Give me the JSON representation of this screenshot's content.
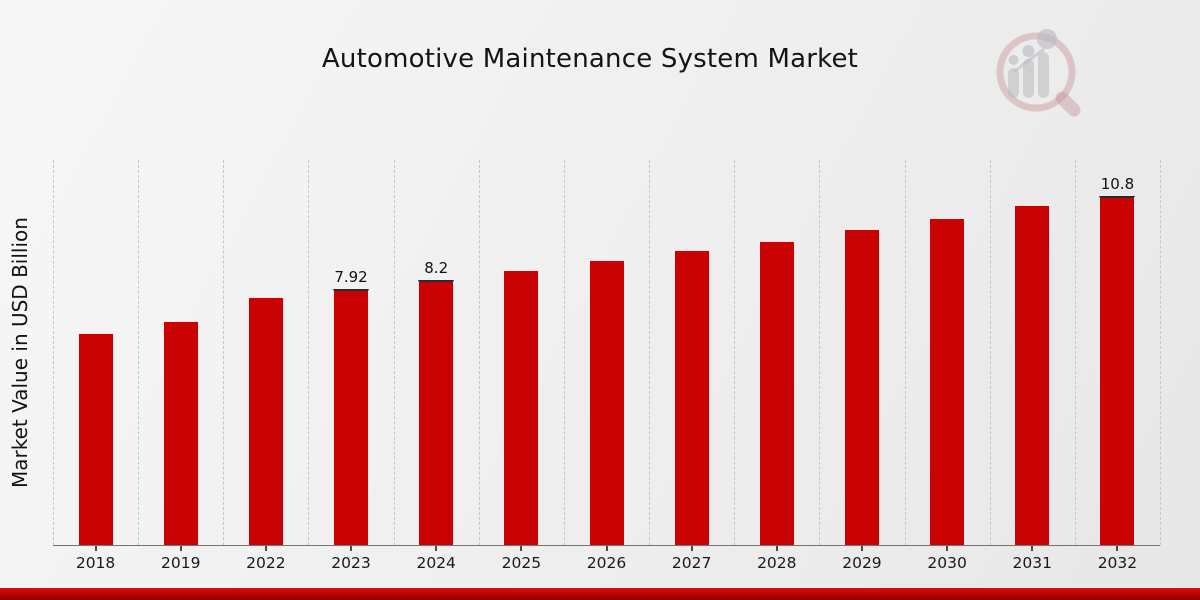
{
  "title": "Automotive Maintenance System Market",
  "ylabel": "Market Value in USD Billion",
  "watermark": {
    "icon": "magnifier-bar-chart-logo"
  },
  "colors": {
    "bar": "#c90303",
    "bar_edge": "#f6f6f6",
    "labeled_bar_top_line": "#2b2b2b",
    "grid": "#c6c6c6",
    "axis": "#737373",
    "text": "#141414",
    "footer_red_top": "#d40f0c",
    "footer_red_bottom": "#8c0000",
    "watermark_pink": "#c58e93",
    "watermark_gray": "#b9b9bf"
  },
  "chart_data": {
    "type": "bar",
    "title": "Automotive Maintenance System Market",
    "xlabel": "",
    "ylabel": "Market Value in USD Billion",
    "categories": [
      "2018",
      "2019",
      "2022",
      "2023",
      "2024",
      "2025",
      "2026",
      "2027",
      "2028",
      "2029",
      "2030",
      "2031",
      "2032"
    ],
    "values": [
      6.56,
      6.93,
      7.67,
      7.92,
      8.2,
      8.51,
      8.82,
      9.13,
      9.41,
      9.78,
      10.12,
      10.52,
      10.8
    ],
    "data_labels": [
      "",
      "",
      "",
      "7.92",
      "8.2",
      "",
      "",
      "",
      "",
      "",
      "",
      "",
      "10.8"
    ],
    "ylim": [
      0,
      11.9
    ],
    "grid": "vertical-dashed",
    "legend": "none",
    "bar_color": "#c90303"
  }
}
